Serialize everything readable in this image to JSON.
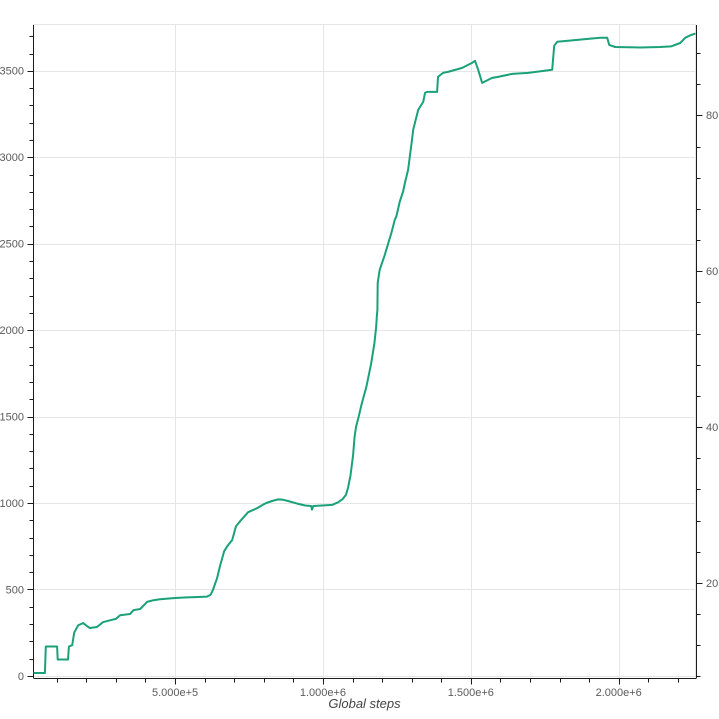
{
  "chart_data": {
    "type": "line",
    "title": "",
    "xlabel": "Global steps",
    "ylabel": "",
    "legend_position": "none",
    "grid": {
      "show_x_major": true,
      "show_y_major": true,
      "color": "#e5e5e5"
    },
    "axis_color": "#1c1c1c",
    "tick_label_color": "#5b5b5b",
    "axis_label_color": "#444444",
    "background": "#ffffff",
    "x_range": [
      23000,
      2258000
    ],
    "y_left_range": [
      -12,
      3765
    ],
    "y_right_range": [
      7.8,
      91.6
    ],
    "x_ticks": [
      {
        "value": 500000,
        "label": "5.000e+5"
      },
      {
        "value": 1000000,
        "label": "1.000e+6"
      },
      {
        "value": 1500000,
        "label": "1.500e+6"
      },
      {
        "value": 2000000,
        "label": "2.000e+6"
      }
    ],
    "x_minor_step": 100000,
    "y_left_ticks": [
      {
        "value": 0,
        "label": "0"
      },
      {
        "value": 500,
        "label": "500"
      },
      {
        "value": 1000,
        "label": "1000"
      },
      {
        "value": 1500,
        "label": "1500"
      },
      {
        "value": 2000,
        "label": "2000"
      },
      {
        "value": 2500,
        "label": "2500"
      },
      {
        "value": 3000,
        "label": "3000"
      },
      {
        "value": 3500,
        "label": "3500"
      }
    ],
    "y_left_minor_step": 100,
    "y_right_ticks": [
      {
        "value": 20,
        "label": "20"
      },
      {
        "value": 40,
        "label": "40"
      },
      {
        "value": 60,
        "label": "60"
      },
      {
        "value": 80,
        "label": "80"
      }
    ],
    "y_right_minor_step": 4,
    "series": [
      {
        "color": "#1aa179",
        "line_width": 2,
        "points": [
          [
            24000,
            17
          ],
          [
            60000,
            17
          ],
          [
            63000,
            170
          ],
          [
            101000,
            170
          ],
          [
            103000,
            95
          ],
          [
            138000,
            95
          ],
          [
            141000,
            170
          ],
          [
            152000,
            178
          ],
          [
            159000,
            250
          ],
          [
            172000,
            292
          ],
          [
            189000,
            306
          ],
          [
            201000,
            290
          ],
          [
            212000,
            277
          ],
          [
            236000,
            283
          ],
          [
            256000,
            311
          ],
          [
            280000,
            322
          ],
          [
            300000,
            330
          ],
          [
            314000,
            351
          ],
          [
            348000,
            358
          ],
          [
            359000,
            380
          ],
          [
            382000,
            387
          ],
          [
            398000,
            415
          ],
          [
            405000,
            428
          ],
          [
            427000,
            438
          ],
          [
            449000,
            444
          ],
          [
            500000,
            451
          ],
          [
            540000,
            454
          ],
          [
            568000,
            456
          ],
          [
            608000,
            459
          ],
          [
            620000,
            470
          ],
          [
            628000,
            497
          ],
          [
            642000,
            566
          ],
          [
            652000,
            636
          ],
          [
            666000,
            722
          ],
          [
            679000,
            756
          ],
          [
            693000,
            786
          ],
          [
            706000,
            866
          ],
          [
            720000,
            895
          ],
          [
            747000,
            947
          ],
          [
            777000,
            970
          ],
          [
            797000,
            990
          ],
          [
            808000,
            1000
          ],
          [
            828000,
            1012
          ],
          [
            848000,
            1021
          ],
          [
            866000,
            1019
          ],
          [
            882000,
            1012
          ],
          [
            913000,
            997
          ],
          [
            940000,
            986
          ],
          [
            960000,
            983
          ],
          [
            963000,
            962
          ],
          [
            967000,
            983
          ],
          [
            997000,
            986
          ],
          [
            1031000,
            989
          ],
          [
            1052000,
            1005
          ],
          [
            1066000,
            1022
          ],
          [
            1078000,
            1048
          ],
          [
            1085000,
            1090
          ],
          [
            1093000,
            1160
          ],
          [
            1102000,
            1278
          ],
          [
            1107000,
            1384
          ],
          [
            1112000,
            1442
          ],
          [
            1121000,
            1500
          ],
          [
            1130000,
            1567
          ],
          [
            1147000,
            1673
          ],
          [
            1163000,
            1808
          ],
          [
            1174000,
            1924
          ],
          [
            1180000,
            2021
          ],
          [
            1182000,
            2078
          ],
          [
            1184000,
            2117
          ],
          [
            1185000,
            2273
          ],
          [
            1192000,
            2349
          ],
          [
            1209000,
            2436
          ],
          [
            1231000,
            2561
          ],
          [
            1243000,
            2638
          ],
          [
            1248000,
            2657
          ],
          [
            1260000,
            2744
          ],
          [
            1271000,
            2802
          ],
          [
            1277000,
            2851
          ],
          [
            1288000,
            2927
          ],
          [
            1301000,
            3101
          ],
          [
            1305000,
            3159
          ],
          [
            1312000,
            3205
          ],
          [
            1322000,
            3274
          ],
          [
            1339000,
            3320
          ],
          [
            1345000,
            3372
          ],
          [
            1352000,
            3378
          ],
          [
            1386000,
            3378
          ],
          [
            1389000,
            3465
          ],
          [
            1406000,
            3488
          ],
          [
            1423000,
            3494
          ],
          [
            1471000,
            3517
          ],
          [
            1504000,
            3546
          ],
          [
            1514000,
            3558
          ],
          [
            1525000,
            3506
          ],
          [
            1538000,
            3430
          ],
          [
            1572000,
            3459
          ],
          [
            1592000,
            3465
          ],
          [
            1640000,
            3482
          ],
          [
            1694000,
            3488
          ],
          [
            1775000,
            3506
          ],
          [
            1782000,
            3645
          ],
          [
            1792000,
            3668
          ],
          [
            1937000,
            3691
          ],
          [
            1961000,
            3691
          ],
          [
            1968000,
            3650
          ],
          [
            1988000,
            3638
          ],
          [
            2073000,
            3635
          ],
          [
            2140000,
            3638
          ],
          [
            2177000,
            3641
          ],
          [
            2208000,
            3661
          ],
          [
            2225000,
            3691
          ],
          [
            2245000,
            3708
          ],
          [
            2257000,
            3714
          ]
        ]
      }
    ]
  }
}
